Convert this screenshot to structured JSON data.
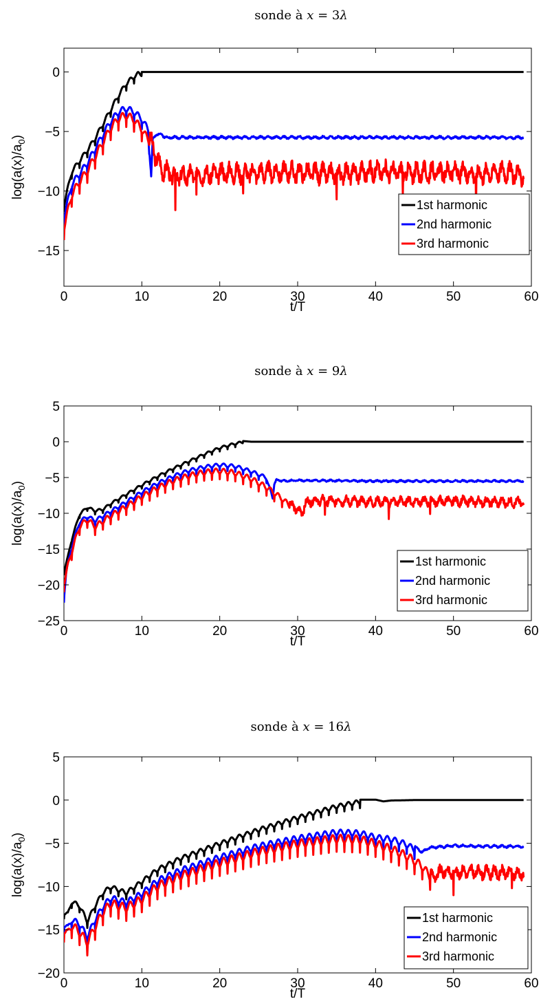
{
  "chart_data": [
    {
      "type": "line",
      "title": "sonde à x = 3λ",
      "title_parts": {
        "prefix": "sonde à ",
        "var": "x",
        "eq": " = 3",
        "greek": "λ"
      },
      "xlabel": "t/T",
      "ylabel": "log(a(x)/a0)",
      "ylabel_parts": {
        "main": "log(a(x)/a",
        "sub": "0",
        "close": ")"
      },
      "xlim": [
        0,
        60
      ],
      "ylim": [
        -18,
        2
      ],
      "xticks": [
        0,
        10,
        20,
        30,
        40,
        50,
        60
      ],
      "yticks": [
        -15,
        -10,
        -5,
        0
      ],
      "grid": false,
      "legend_position": "bottom-right",
      "series": [
        {
          "name": "1st harmonic",
          "color": "#000000",
          "x": [
            0,
            1,
            2,
            3,
            4,
            5,
            6,
            7,
            8,
            9,
            9.5,
            10,
            11,
            12,
            15,
            20,
            30,
            40,
            50,
            59
          ],
          "values": [
            -11,
            -8.2,
            -7.3,
            -6.4,
            -5.4,
            -4.2,
            -3.0,
            -1.8,
            -0.8,
            -0.2,
            0,
            0,
            0,
            0,
            0,
            0,
            0,
            0,
            0,
            0
          ],
          "ripple": 0.35,
          "ripple_end": 10,
          "tail_ripple": 0,
          "seed": 1
        },
        {
          "name": "2nd harmonic",
          "color": "#0000ff",
          "x": [
            0,
            1,
            2,
            3,
            4,
            5,
            6,
            7,
            8,
            9,
            10,
            10.8,
            11,
            11.2,
            11.4,
            11.8,
            12.5,
            13,
            20,
            30,
            40,
            50,
            59
          ],
          "values": [
            -12,
            -9.2,
            -8.3,
            -7.4,
            -6.2,
            -5.0,
            -3.9,
            -3.1,
            -2.8,
            -3.1,
            -3.7,
            -4.6,
            -7.0,
            -8.8,
            -5.6,
            -5.3,
            -5.2,
            -5.5,
            -5.5,
            -5.5,
            -5.5,
            -5.5,
            -5.5
          ],
          "ripple": 0.5,
          "ripple_end": 11,
          "tail_ripple": 0.15,
          "seed": 2
        },
        {
          "name": "3rd harmonic",
          "color": "#ff0000",
          "x": [
            0,
            1,
            2,
            3,
            4,
            5,
            6,
            7,
            8,
            9,
            10,
            11,
            11.5,
            12,
            12.5,
            13,
            14,
            20,
            30,
            35,
            40,
            45,
            50,
            53,
            56,
            59
          ],
          "values": [
            -12.8,
            -10,
            -8.9,
            -8.0,
            -6.8,
            -5.6,
            -4.4,
            -3.6,
            -3.3,
            -3.7,
            -4.5,
            -5.6,
            -6.6,
            -7.3,
            -8.2,
            -8.2,
            -8.8,
            -8.5,
            -8.4,
            -8.6,
            -8.3,
            -8.5,
            -8.4,
            -8.6,
            -8.3,
            -8.7
          ],
          "ripple": 0.6,
          "ripple_end": 11,
          "tail_ripple": 1.1,
          "seed": 3,
          "spikes": [
            [
              14.3,
              -11.6
            ],
            [
              35,
              -10.7
            ],
            [
              52.9,
              -11.4
            ],
            [
              17,
              -10.3
            ],
            [
              23,
              -10.2
            ],
            [
              43.5,
              -10.3
            ]
          ]
        }
      ]
    },
    {
      "type": "line",
      "title": "sonde à x = 9λ",
      "title_parts": {
        "prefix": "sonde à ",
        "var": "x",
        "eq": " = 9",
        "greek": "λ"
      },
      "xlabel": "t/T",
      "ylabel": "log(a(x)/a0)",
      "ylabel_parts": {
        "main": "log(a(x)/a",
        "sub": "0",
        "close": ")"
      },
      "xlim": [
        0,
        60
      ],
      "ylim": [
        -25,
        5
      ],
      "xticks": [
        0,
        10,
        20,
        30,
        40,
        50,
        60
      ],
      "yticks": [
        -25,
        -20,
        -15,
        -10,
        -5,
        0,
        5
      ],
      "grid": false,
      "legend_position": "bottom-right",
      "series": [
        {
          "name": "1st harmonic",
          "color": "#000000",
          "x": [
            0,
            0.5,
            1,
            2,
            3,
            4,
            5,
            6,
            8,
            10,
            12,
            14,
            16,
            18,
            20,
            22,
            23,
            24,
            25,
            30,
            40,
            50,
            59
          ],
          "values": [
            -18,
            -16,
            -13.5,
            -10,
            -9,
            -9.5,
            -9.3,
            -8.5,
            -7.2,
            -5.9,
            -4.7,
            -3.6,
            -2.6,
            -1.6,
            -0.7,
            -0.1,
            0.1,
            0,
            0,
            0,
            0,
            0,
            0
          ],
          "ripple": 0.3,
          "ripple_end": 23,
          "tail_ripple": 0,
          "seed": 4
        },
        {
          "name": "2nd harmonic",
          "color": "#0000ff",
          "x": [
            0,
            0.3,
            1,
            2,
            3,
            4,
            6,
            8,
            10,
            12,
            14,
            16,
            18,
            20,
            22,
            24,
            26,
            26.8,
            27,
            27.3,
            28,
            30,
            40,
            50,
            59
          ],
          "values": [
            -21.5,
            -18,
            -14.5,
            -11,
            -10.2,
            -10.8,
            -9.5,
            -8.2,
            -6.8,
            -5.6,
            -4.6,
            -3.8,
            -3.3,
            -3.0,
            -3.2,
            -3.9,
            -4.8,
            -7.8,
            -6,
            -5.3,
            -5.5,
            -5.4,
            -5.5,
            -5.5,
            -5.5
          ],
          "ripple": 0.45,
          "ripple_end": 26.5,
          "tail_ripple": 0.18,
          "seed": 5
        },
        {
          "name": "3rd harmonic",
          "color": "#ff0000",
          "x": [
            0,
            0.5,
            1,
            2,
            3,
            4,
            6,
            8,
            10,
            12,
            14,
            16,
            18,
            20,
            22,
            24,
            26,
            27,
            28,
            29,
            30,
            30.5,
            31,
            32,
            40,
            50,
            59
          ],
          "values": [
            -19.5,
            -17,
            -15,
            -11.5,
            -10.5,
            -11.5,
            -10,
            -8.7,
            -7.3,
            -6.1,
            -5.1,
            -4.4,
            -3.9,
            -3.7,
            -4.0,
            -4.8,
            -6.0,
            -6.8,
            -7.6,
            -8.6,
            -9.6,
            -10.0,
            -8.6,
            -8.2,
            -8.4,
            -8.3,
            -8.5
          ],
          "ripple": 0.7,
          "ripple_end": 29,
          "tail_ripple": 0.9,
          "seed": 6,
          "spikes": [
            [
              41.7,
              -10.8
            ],
            [
              33.5,
              -10.2
            ],
            [
              47,
              -10.1
            ]
          ]
        }
      ]
    },
    {
      "type": "line",
      "title": "sonde à x = 16λ",
      "title_parts": {
        "prefix": "sonde à ",
        "var": "x",
        "eq": " = 16",
        "greek": "λ"
      },
      "xlabel": "t/T",
      "ylabel": "log(a(x)/a0)",
      "ylabel_parts": {
        "main": "log(a(x)/a",
        "sub": "0",
        "close": ")"
      },
      "xlim": [
        0,
        60
      ],
      "ylim": [
        -20,
        5
      ],
      "xticks": [
        0,
        10,
        20,
        30,
        40,
        50,
        60
      ],
      "yticks": [
        -20,
        -15,
        -10,
        -5,
        0,
        5
      ],
      "grid": false,
      "legend_position": "bottom-right",
      "series": [
        {
          "name": "1st harmonic",
          "color": "#000000",
          "x": [
            0,
            0.5,
            1,
            2,
            3,
            4,
            5,
            6,
            8,
            10,
            12,
            15,
            20,
            25,
            30,
            35,
            38,
            40,
            41,
            42,
            45,
            50,
            59
          ],
          "values": [
            -12.8,
            -13,
            -11.5,
            -12,
            -13.8,
            -12,
            -10.5,
            -9.8,
            -10.5,
            -9.2,
            -7.8,
            -6.5,
            -4.8,
            -3.2,
            -1.8,
            -0.5,
            0.05,
            0.05,
            -0.15,
            -0.05,
            0,
            0,
            0
          ],
          "ripple": 0.45,
          "ripple_end": 38,
          "tail_ripple": 0,
          "seed": 7
        },
        {
          "name": "2nd harmonic",
          "color": "#0000ff",
          "x": [
            0,
            0.5,
            1,
            2,
            3,
            4,
            5,
            6,
            8,
            10,
            12,
            15,
            20,
            25,
            30,
            35,
            38,
            40,
            42,
            44,
            46,
            47,
            50,
            59
          ],
          "values": [
            -14,
            -14.5,
            -13.5,
            -14,
            -15.5,
            -13.5,
            -12,
            -11,
            -11.5,
            -10.5,
            -9,
            -7.8,
            -6.3,
            -5,
            -4.1,
            -3.4,
            -3.5,
            -4.0,
            -4.2,
            -4.8,
            -6,
            -5.5,
            -5.3,
            -5.4
          ],
          "ripple": 0.65,
          "ripple_end": 45,
          "tail_ripple": 0.2,
          "seed": 8
        },
        {
          "name": "3rd harmonic",
          "color": "#ff0000",
          "x": [
            0,
            0.5,
            1,
            2,
            3,
            4,
            5,
            6,
            8,
            10,
            12,
            15,
            20,
            25,
            30,
            35,
            38,
            40,
            42,
            44,
            46,
            47.5,
            48.5,
            50,
            52,
            55,
            59
          ],
          "values": [
            -14.5,
            -15,
            -14,
            -14.8,
            -16,
            -14.2,
            -12.5,
            -11.5,
            -12,
            -11,
            -9.5,
            -8.3,
            -6.8,
            -5.5,
            -4.6,
            -4.0,
            -4.1,
            -4.6,
            -5.2,
            -6.0,
            -7.2,
            -9.0,
            -8.2,
            -8.4,
            -8.3,
            -8.4,
            -8.5
          ],
          "ripple": 0.9,
          "ripple_end": 47,
          "tail_ripple": 1.0,
          "seed": 9,
          "spikes": [
            [
              50,
              -11.0
            ],
            [
              57.5,
              -10.2
            ]
          ]
        }
      ]
    }
  ]
}
